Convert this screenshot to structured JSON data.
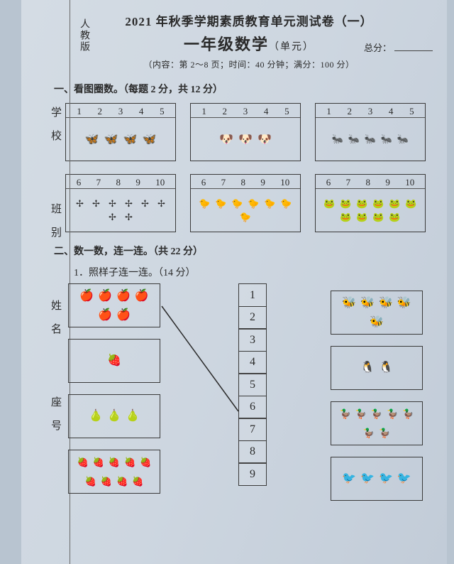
{
  "edition": "人教版",
  "header": {
    "title": "2021 年秋季学期素质教育单元测试卷（一）",
    "subtitle": "一年级数学",
    "subtitle_suffix": "（单元）",
    "score_label": "总分：",
    "meta": "（内容：第 2～8 页；时间：40 分钟；满分：100 分）"
  },
  "side": {
    "school": "学校",
    "class": "班别",
    "name": "姓名",
    "seat": "座号"
  },
  "sec1": {
    "heading": "一、看图圈数。（每题 2 分，共 12 分）",
    "row1": {
      "nums": [
        "1",
        "2",
        "3",
        "4",
        "5"
      ],
      "a": {
        "icon": "butterfly",
        "glyph": "🦋",
        "count": 4
      },
      "b": {
        "icon": "dog-face",
        "glyph": "🐶",
        "count": 3
      },
      "c": {
        "icon": "ant",
        "glyph": "🐜",
        "count": 5
      }
    },
    "row2": {
      "nums": [
        "6",
        "7",
        "8",
        "9",
        "10"
      ],
      "a": {
        "icon": "dragonfly",
        "glyph": "✢",
        "count": 8
      },
      "b": {
        "icon": "chick",
        "glyph": "🐤",
        "count": 7
      },
      "c": {
        "icon": "frog",
        "glyph": "🐸",
        "count": 10
      }
    }
  },
  "sec2": {
    "heading": "二、数一数，连一连。（共 22 分）",
    "q1": "1．照样子连一连。（14 分）",
    "numbers": [
      "1",
      "2",
      "3",
      "4",
      "5",
      "6",
      "7",
      "8",
      "9"
    ],
    "left": [
      {
        "icon": "apple",
        "glyph": "🍎",
        "count": 6
      },
      {
        "icon": "strawberry-single",
        "glyph": "🍓",
        "count": 1
      },
      {
        "icon": "pear",
        "glyph": "🍐",
        "count": 3
      },
      {
        "icon": "strawberry",
        "glyph": "🍓",
        "count": 9
      }
    ],
    "right": [
      {
        "icon": "bee",
        "glyph": "🐝",
        "count": 5
      },
      {
        "icon": "penguin",
        "glyph": "🐧",
        "count": 2
      },
      {
        "icon": "duck",
        "glyph": "🦆",
        "count": 7
      },
      {
        "icon": "bird",
        "glyph": "🐦",
        "count": 4
      }
    ],
    "example_line": {
      "from": "left-0",
      "to": "number-6"
    }
  },
  "colors": {
    "text": "#2a2a2a",
    "border": "#3a3a3a",
    "bg": "#cdd6e0"
  }
}
